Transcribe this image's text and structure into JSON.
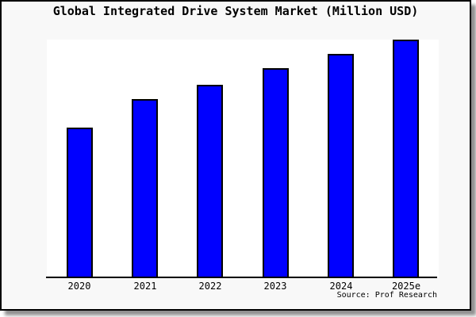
{
  "window": {
    "background": "#ffffff"
  },
  "frame": {
    "background": "#f8f8f8",
    "border_color": "#000000",
    "shadow_color": "#909090"
  },
  "source_credit": "Source: Prof Research",
  "chart_data": {
    "type": "bar",
    "title": "Global Integrated Drive System Market (Million USD)",
    "categories": [
      "2020",
      "2021",
      "2022",
      "2023",
      "2024",
      "2025e"
    ],
    "values": [
      63,
      75,
      81,
      88,
      94,
      100
    ],
    "xlabel": "",
    "ylabel": "",
    "ylim": [
      0,
      100
    ],
    "y_axis_labels_visible": false,
    "values_note": "y-axis is unlabeled; values are estimated relative bar heights indexed to 2025e = 100",
    "grid": false,
    "legend": "none",
    "bar_fill": "#0000ff",
    "bar_border": "#000000",
    "plot_background": "#ffffff",
    "axis_color": "#000000"
  }
}
